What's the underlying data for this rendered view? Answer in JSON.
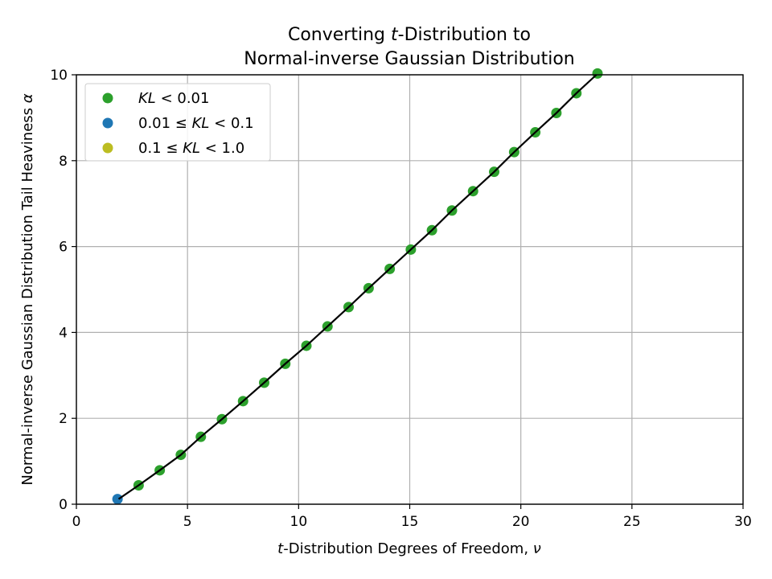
{
  "chart_data": {
    "type": "scatter",
    "title_line1_pre": "Converting ",
    "title_line1_var": "t",
    "title_line1_post": "-Distribution to",
    "title_line2": "Normal-inverse Gaussian Distribution",
    "xlabel_var": "t",
    "xlabel_text": "-Distribution Degrees of Freedom, ",
    "xlabel_sym": "ν",
    "ylabel_text": "Normal-inverse Gaussian Distribution Tail Heaviness ",
    "ylabel_sym": "α",
    "xlim": [
      0,
      30
    ],
    "ylim": [
      0,
      10
    ],
    "x_ticks": [
      0,
      5,
      10,
      15,
      20,
      25,
      30
    ],
    "y_ticks": [
      0,
      2,
      4,
      6,
      8,
      10
    ],
    "grid": true,
    "legend_position": "top-left",
    "legend": [
      {
        "pre": "",
        "italic": "KL",
        "post": " < 0.01",
        "color": "#2ca02c"
      },
      {
        "pre": "0.01 ≤ ",
        "italic": "KL",
        "post": " < 0.1",
        "color": "#1f77b4"
      },
      {
        "pre": "0.1 ≤ ",
        "italic": "KL",
        "post": " < 1.0",
        "color": "#bcbd22"
      }
    ],
    "curve": {
      "color": "#000000",
      "x": [
        1.9,
        2.8,
        3.75,
        4.7,
        5.6,
        6.55,
        7.5,
        8.45,
        9.4,
        10.35,
        11.3,
        12.25,
        13.15,
        14.1,
        15.05,
        16.0,
        16.9,
        17.85,
        18.8,
        19.7,
        20.65,
        21.6,
        22.5,
        23.4
      ],
      "y": [
        0.12,
        0.44,
        0.79,
        1.15,
        1.57,
        1.98,
        2.4,
        2.83,
        3.27,
        3.69,
        4.14,
        4.59,
        5.03,
        5.48,
        5.93,
        6.38,
        6.84,
        7.29,
        7.74,
        8.2,
        8.66,
        9.11,
        9.57,
        10.0
      ]
    },
    "series": [
      {
        "name": "KL < 0.01",
        "color": "#2ca02c",
        "x": [
          2.8,
          3.75,
          4.7,
          5.6,
          6.55,
          7.5,
          8.45,
          9.4,
          10.35,
          11.3,
          12.25,
          13.15,
          14.1,
          15.05,
          16.0,
          16.9,
          17.85,
          18.8,
          19.7,
          20.65,
          21.6,
          22.5,
          23.45
        ],
        "y": [
          0.44,
          0.79,
          1.15,
          1.57,
          1.98,
          2.4,
          2.83,
          3.27,
          3.69,
          4.14,
          4.59,
          5.03,
          5.48,
          5.93,
          6.38,
          6.84,
          7.29,
          7.74,
          8.2,
          8.66,
          9.11,
          9.57,
          10.03
        ]
      },
      {
        "name": "0.01 ≤ KL < 0.1",
        "color": "#1f77b4",
        "x": [
          1.85
        ],
        "y": [
          0.12
        ]
      },
      {
        "name": "0.1 ≤ KL < 1.0",
        "color": "#bcbd22",
        "x": [],
        "y": []
      }
    ]
  }
}
